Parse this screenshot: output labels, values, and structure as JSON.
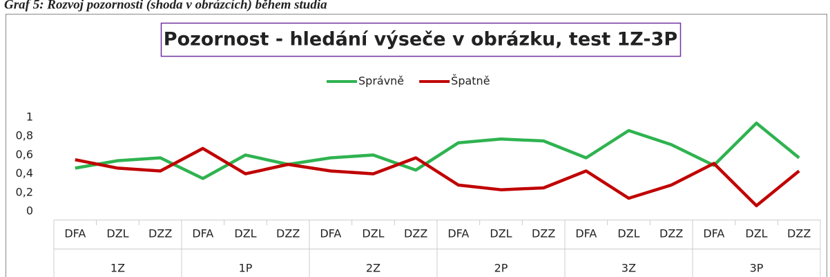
{
  "caption": "Graf 5: Rozvoj pozornosti (shoda v obrázcích) během studia",
  "chart_data": {
    "type": "line",
    "title": "Pozornost - hledání výseče v obrázku, test 1Z-3P",
    "categories": [
      "DFA",
      "DZL",
      "DZZ",
      "DFA",
      "DZL",
      "DZZ",
      "DFA",
      "DZL",
      "DZZ",
      "DFA",
      "DZL",
      "DZZ",
      "DFA",
      "DZL",
      "DZZ",
      "DFA",
      "DZL",
      "DZZ"
    ],
    "groups": [
      "1Z",
      "1P",
      "2Z",
      "2P",
      "3Z",
      "3P"
    ],
    "series": [
      {
        "name": "Správně",
        "color": "#2fb350",
        "values": [
          0.46,
          0.54,
          0.57,
          0.35,
          0.6,
          0.5,
          0.57,
          0.6,
          0.44,
          0.73,
          0.77,
          0.75,
          0.57,
          0.86,
          0.71,
          0.49,
          0.94,
          0.57
        ]
      },
      {
        "name": "Špatně",
        "color": "#c00000",
        "values": [
          0.55,
          0.46,
          0.43,
          0.67,
          0.4,
          0.5,
          0.43,
          0.4,
          0.57,
          0.28,
          0.23,
          0.25,
          0.43,
          0.14,
          0.28,
          0.51,
          0.06,
          0.43
        ]
      }
    ],
    "ylim": [
      0,
      1
    ],
    "yticks": [
      0,
      {
        "value": 0.2,
        "label": "0,2"
      },
      {
        "value": 0.4,
        "label": "0,4"
      },
      {
        "value": 0.6,
        "label": "0,6"
      },
      {
        "value": 0.8,
        "label": "0,8"
      },
      1
    ],
    "legend": "top"
  }
}
